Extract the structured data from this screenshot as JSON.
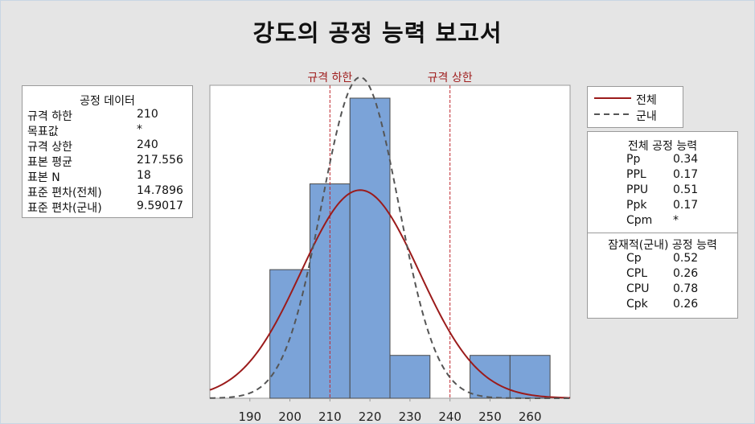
{
  "title": "강도의 공정 능력 보고서",
  "process_data": {
    "header": "공정 데이터",
    "rows": [
      {
        "label": "규격 하한",
        "value": "210"
      },
      {
        "label": "목표값",
        "value": "*"
      },
      {
        "label": "규격 상한",
        "value": "240"
      },
      {
        "label": "표본 평균",
        "value": "217.556"
      },
      {
        "label": "표본 N",
        "value": "18"
      },
      {
        "label": "표준 편차(전체)",
        "value": "14.7896"
      },
      {
        "label": "표준 편차(군내)",
        "value": "9.59017"
      }
    ]
  },
  "legend": {
    "overall": "전체",
    "within": "군내"
  },
  "overall_capability": {
    "header": "전체 공정 능력",
    "rows": [
      {
        "label": "Pp",
        "value": "0.34"
      },
      {
        "label": "PPL",
        "value": "0.17"
      },
      {
        "label": "PPU",
        "value": "0.51"
      },
      {
        "label": "Ppk",
        "value": "0.17"
      },
      {
        "label": "Cpm",
        "value": "*"
      }
    ]
  },
  "potential_capability": {
    "header": "잠재적(군내) 공정 능력",
    "rows": [
      {
        "label": "Cp",
        "value": "0.52"
      },
      {
        "label": "CPL",
        "value": "0.26"
      },
      {
        "label": "CPU",
        "value": "0.78"
      },
      {
        "label": "Cpk",
        "value": "0.26"
      }
    ]
  },
  "colors": {
    "bar_fill": "#7ba3d8",
    "bar_stroke": "#4a4a4a",
    "overall_curve": "#9b1b1b",
    "within_curve": "#555555",
    "spec_line": "#c0282d",
    "spec_label": "#a02020"
  },
  "chart_data": {
    "type": "bar",
    "bin_edges": [
      195,
      205,
      215,
      225,
      235,
      245,
      255,
      265
    ],
    "counts": [
      3,
      5,
      7,
      1,
      0,
      1,
      1
    ],
    "xlim": [
      180,
      270
    ],
    "x_ticks": [
      190,
      200,
      210,
      220,
      230,
      240,
      250,
      260
    ],
    "ylim": [
      0,
      7.3
    ],
    "grid": false,
    "spec_limits": [
      {
        "name": "규격 하한",
        "value": 210
      },
      {
        "name": "규격 상한",
        "value": 240
      }
    ],
    "curves": [
      {
        "name": "전체",
        "mean": 217.556,
        "sd": 14.7896,
        "style": "solid"
      },
      {
        "name": "군내",
        "mean": 217.556,
        "sd": 9.59017,
        "style": "dashed"
      }
    ],
    "n": 18,
    "bin_width": 10
  }
}
